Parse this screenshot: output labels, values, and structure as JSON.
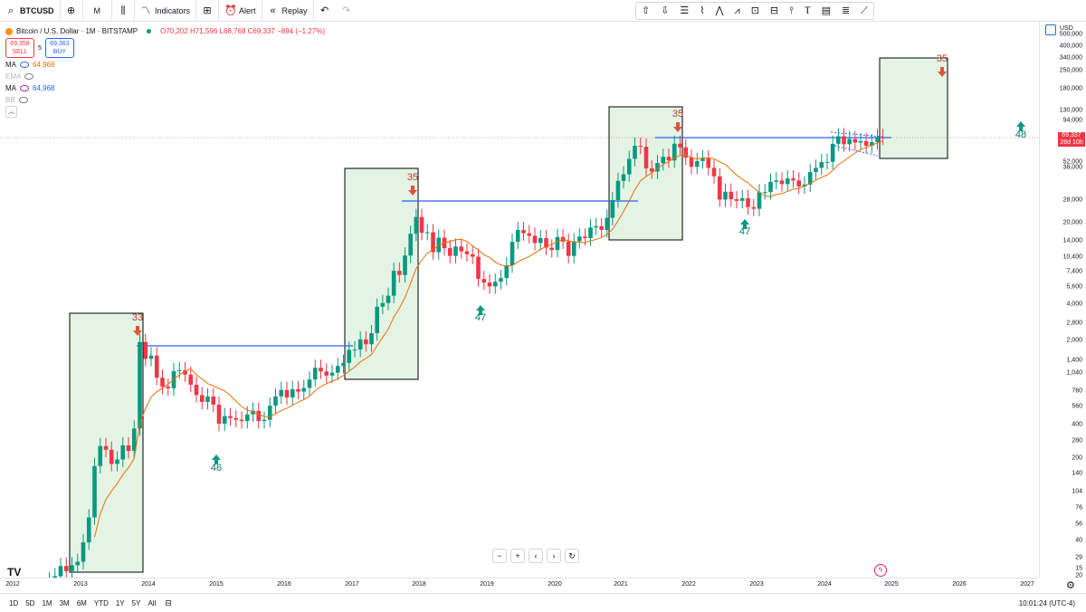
{
  "toolbar": {
    "symbol": "BTCUSD",
    "interval": "M",
    "indicators_label": "Indicators",
    "alert_label": "Alert",
    "replay_label": "Replay",
    "currency": "USD"
  },
  "legend": {
    "title": "Bitcoin / U.S. Dollar · 1M · BITSTAMP",
    "ohlc": "O70,202 H71,596 L68,768 C69,337 −894 (−1.27%)",
    "sell_price": "69,358",
    "sell_label": "SELL",
    "spread": "5",
    "buy_price": "69,363",
    "buy_label": "BUY",
    "indicators": [
      {
        "name": "MA",
        "value": "64,968",
        "color": "#ef6c00"
      },
      {
        "name": "EMA",
        "value": "",
        "color": "#787b86"
      },
      {
        "name": "MA",
        "value": "64,968",
        "color": "#2962ff"
      },
      {
        "name": "BB",
        "value": "",
        "color": "#787b86"
      }
    ]
  },
  "price_axis": {
    "labels": [
      "500,000",
      "400,000",
      "340,000",
      "250,000",
      "180,000",
      "130,000",
      "94,000",
      "69,337",
      "52,000",
      "38,000",
      "28,000",
      "20,000",
      "14,000",
      "10,400",
      "7,400",
      "5,600",
      "4,000",
      "2,800",
      "2,000",
      "1,400",
      "1,040",
      "760",
      "560",
      "400",
      "280",
      "200",
      "140",
      "104",
      "76",
      "56",
      "40",
      "29",
      "20",
      "15"
    ],
    "current_price": "69,337",
    "countdown": "28d 10h"
  },
  "time_axis": [
    "2012",
    "2013",
    "2014",
    "2015",
    "2016",
    "2017",
    "2018",
    "2019",
    "2020",
    "2021",
    "2022",
    "2023",
    "2024",
    "2025",
    "2026",
    "2027"
  ],
  "bottom": {
    "timeframes": [
      "1D",
      "5D",
      "1M",
      "3M",
      "6M",
      "YTD",
      "1Y",
      "5Y",
      "All"
    ],
    "clock": "10:01:24 (UTC-4)"
  },
  "chart_data": {
    "type": "candlestick",
    "scale": "log",
    "annotations": [
      {
        "text": "33",
        "kind": "top",
        "date": "2013-12"
      },
      {
        "text": "46",
        "kind": "bottom",
        "date": "2015-01"
      },
      {
        "text": "35",
        "kind": "top",
        "date": "2017-12"
      },
      {
        "text": "47",
        "kind": "bottom",
        "date": "2018-12"
      },
      {
        "text": "35",
        "kind": "top",
        "date": "2021-11"
      },
      {
        "text": "47",
        "kind": "bottom",
        "date": "2022-11"
      },
      {
        "text": "35",
        "kind": "top",
        "date": "2025-10"
      },
      {
        "text": "48",
        "kind": "bottom",
        "date": "2025-10"
      }
    ],
    "colors": {
      "up": "#089981",
      "down": "#f23645",
      "ma": "#ef6c00",
      "hline": "#2962ff",
      "box": "#d9efd9"
    }
  }
}
